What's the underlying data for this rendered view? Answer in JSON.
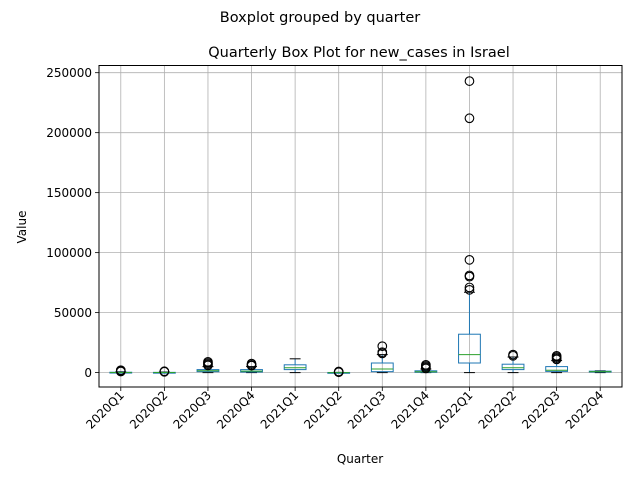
{
  "chart_data": {
    "type": "box",
    "suptitle": "Boxplot grouped by quarter",
    "title": "Quarterly Box Plot for new_cases in Israel",
    "xlabel": "Quarter",
    "ylabel": "Value",
    "ylim": [
      -12000,
      256000
    ],
    "yticks": [
      0,
      50000,
      100000,
      150000,
      200000,
      250000
    ],
    "ytick_labels": [
      "0",
      "50000",
      "100000",
      "150000",
      "200000",
      "250000"
    ],
    "grid": true,
    "colors": {
      "box": "#1f77b4",
      "median": "#2ca02c",
      "whisker": "#1f77b4",
      "cap": "#000000",
      "grid": "#b0b0b0"
    },
    "categories": [
      "2020Q1",
      "2020Q2",
      "2020Q3",
      "2020Q4",
      "2021Q1",
      "2021Q2",
      "2021Q3",
      "2021Q4",
      "2022Q1",
      "2022Q2",
      "2022Q3",
      "2022Q4"
    ],
    "boxes": [
      {
        "q1": 0,
        "median": 50,
        "q3": 300,
        "whislo": 0,
        "whishi": 700,
        "fliers": [
          900,
          1500,
          2000
        ]
      },
      {
        "q1": 0,
        "median": 50,
        "q3": 200,
        "whislo": 0,
        "whishi": 500,
        "fliers": [
          700,
          1100
        ]
      },
      {
        "q1": 800,
        "median": 1500,
        "q3": 2500,
        "whislo": 0,
        "whishi": 5000,
        "fliers": [
          6000,
          7000,
          8000,
          9000
        ]
      },
      {
        "q1": 500,
        "median": 1200,
        "q3": 2500,
        "whislo": 0,
        "whishi": 5000,
        "fliers": [
          5800,
          6500,
          7500
        ]
      },
      {
        "q1": 2500,
        "median": 4000,
        "q3": 6500,
        "whislo": 0,
        "whishi": 11500,
        "fliers": []
      },
      {
        "q1": 0,
        "median": 20,
        "q3": 100,
        "whislo": 0,
        "whishi": 200,
        "fliers": [
          300,
          600,
          900
        ]
      },
      {
        "q1": 800,
        "median": 3000,
        "q3": 8000,
        "whislo": 0,
        "whishi": 15000,
        "fliers": [
          16000,
          17000,
          22000
        ]
      },
      {
        "q1": 300,
        "median": 700,
        "q3": 1500,
        "whislo": 0,
        "whishi": 3000,
        "fliers": [
          3500,
          4500,
          5500,
          6500
        ]
      },
      {
        "q1": 8000,
        "median": 15000,
        "q3": 32000,
        "whislo": 0,
        "whishi": 67000,
        "fliers": [
          69000,
          71000,
          80000,
          81000,
          94000,
          212000,
          243000
        ]
      },
      {
        "q1": 2500,
        "median": 4000,
        "q3": 7000,
        "whislo": 0,
        "whishi": 13000,
        "fliers": [
          14000,
          15000
        ]
      },
      {
        "q1": 1000,
        "median": 2000,
        "q3": 5000,
        "whislo": 0,
        "whishi": 10000,
        "fliers": [
          11000,
          12000,
          13000,
          14000
        ]
      },
      {
        "q1": 500,
        "median": 800,
        "q3": 1200,
        "whislo": 0,
        "whishi": 1500,
        "fliers": []
      }
    ]
  }
}
